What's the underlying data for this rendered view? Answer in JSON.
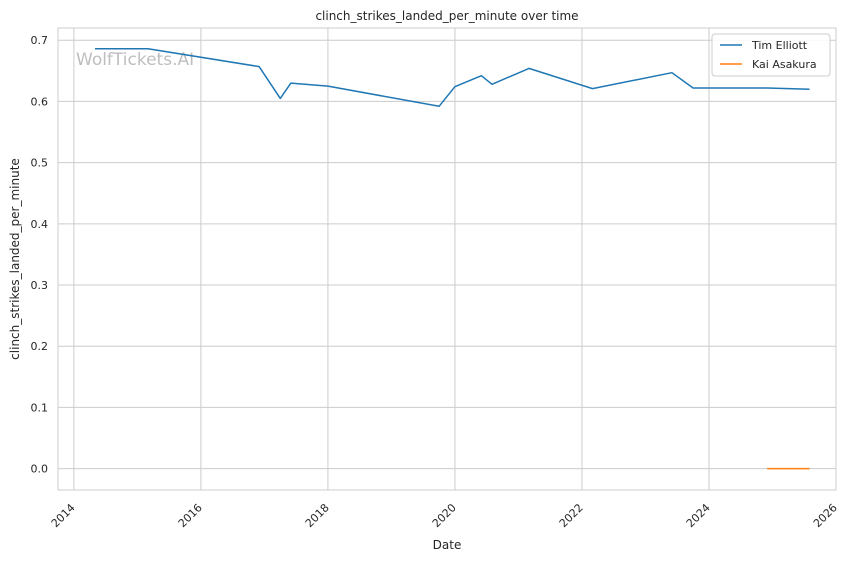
{
  "chart_data": {
    "type": "line",
    "title": "clinch_strikes_landed_per_minute over time",
    "xlabel": "Date",
    "ylabel": "clinch_strikes_landed_per_minute",
    "watermark": "WolfTickets.AI",
    "xlim": [
      "2013-10-01",
      "2025-12-31"
    ],
    "ylim": [
      -0.035,
      0.72
    ],
    "x_ticks": [
      "2014",
      "2016",
      "2018",
      "2020",
      "2022",
      "2024",
      "2026"
    ],
    "y_ticks": [
      "0.0",
      "0.1",
      "0.2",
      "0.3",
      "0.4",
      "0.5",
      "0.6",
      "0.7"
    ],
    "grid": true,
    "legend_position": "top-right",
    "series": [
      {
        "name": "Tim Elliott",
        "color": "#1f77b4",
        "points": [
          {
            "x": "2014-05-01",
            "y": 0.686
          },
          {
            "x": "2015-03-01",
            "y": 0.686
          },
          {
            "x": "2016-12-01",
            "y": 0.657
          },
          {
            "x": "2017-04-01",
            "y": 0.605
          },
          {
            "x": "2017-06-01",
            "y": 0.63
          },
          {
            "x": "2018-01-01",
            "y": 0.625
          },
          {
            "x": "2019-10-01",
            "y": 0.592
          },
          {
            "x": "2020-01-01",
            "y": 0.624
          },
          {
            "x": "2020-06-01",
            "y": 0.642
          },
          {
            "x": "2020-08-01",
            "y": 0.628
          },
          {
            "x": "2021-03-01",
            "y": 0.654
          },
          {
            "x": "2022-03-01",
            "y": 0.621
          },
          {
            "x": "2023-06-01",
            "y": 0.647
          },
          {
            "x": "2023-10-01",
            "y": 0.622
          },
          {
            "x": "2024-12-01",
            "y": 0.622
          },
          {
            "x": "2025-08-01",
            "y": 0.62
          }
        ]
      },
      {
        "name": "Kai Asakura",
        "color": "#ff7f0e",
        "points": [
          {
            "x": "2024-12-01",
            "y": 0.0
          },
          {
            "x": "2025-08-01",
            "y": 0.0
          }
        ]
      }
    ]
  }
}
